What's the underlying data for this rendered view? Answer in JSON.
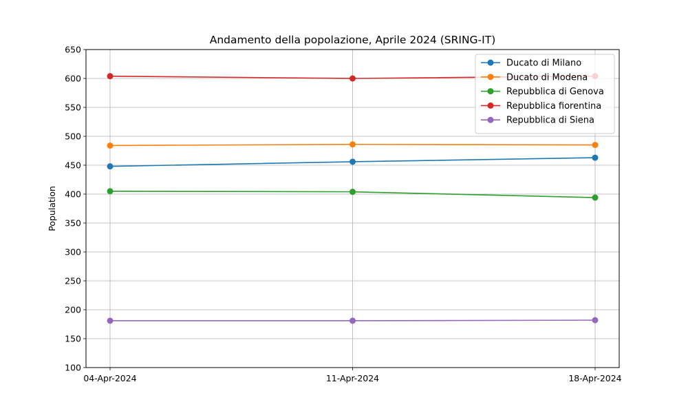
{
  "chart_data": {
    "type": "line",
    "title": "Andamento della popolazione, Aprile 2024 (SRING-IT)",
    "xlabel": "",
    "ylabel": "Population",
    "categories": [
      "04-Apr-2024",
      "11-Apr-2024",
      "18-Apr-2024"
    ],
    "ylim": [
      100,
      650
    ],
    "yticks": [
      100,
      150,
      200,
      250,
      300,
      350,
      400,
      450,
      500,
      550,
      600,
      650
    ],
    "grid": true,
    "legend_position": "top-right",
    "series": [
      {
        "name": "Ducato di Milano",
        "color": "#1f77b4",
        "values": [
          448,
          456,
          463
        ]
      },
      {
        "name": "Ducato di Modena",
        "color": "#ff7f0e",
        "values": [
          484,
          486,
          485
        ]
      },
      {
        "name": "Repubblica di Genova",
        "color": "#2ca02c",
        "values": [
          405,
          404,
          394
        ]
      },
      {
        "name": "Repubblica fiorentina",
        "color": "#d62728",
        "values": [
          604,
          600,
          604
        ]
      },
      {
        "name": "Repubblica di Siena",
        "color": "#9467bd",
        "values": [
          181,
          181,
          182
        ]
      }
    ]
  }
}
